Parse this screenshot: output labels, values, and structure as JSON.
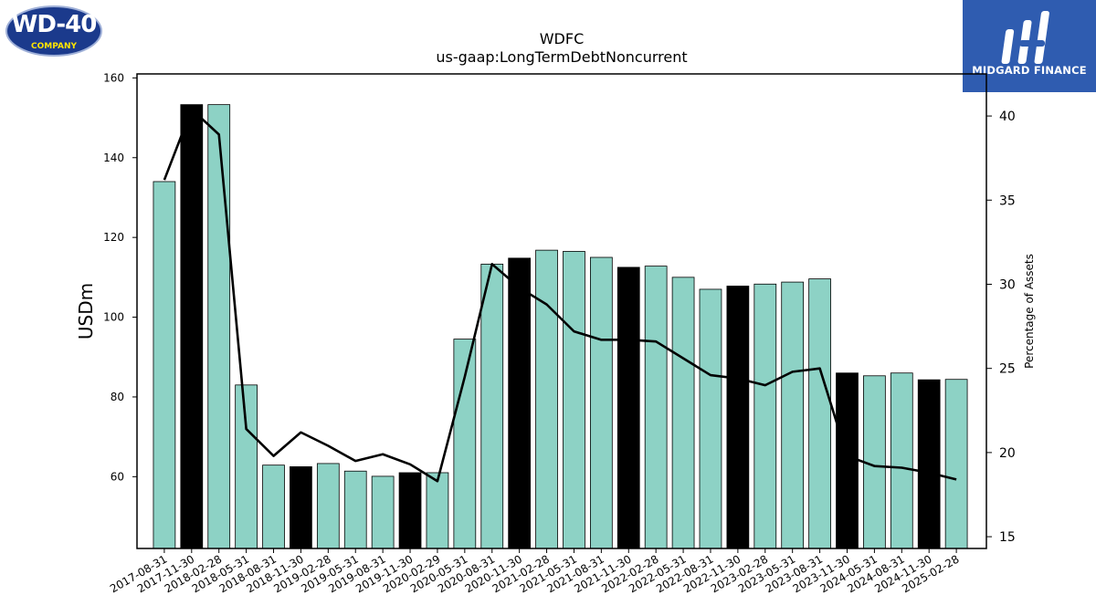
{
  "header": {
    "left_logo": {
      "text": "WD-40",
      "subtext": "COMPANY",
      "icon": "wd40-logo"
    },
    "right_logo": {
      "text": "MIDGARD FINANCE",
      "icon": "midgard-logo"
    }
  },
  "chart_data": {
    "type": "bar",
    "title": "WDFC",
    "subtitle": "us-gaap:LongTermDebtNoncurrent",
    "ylabel": "USDm",
    "y2label": "Percentage of Assets",
    "ylim": [
      42,
      161
    ],
    "y2lim": [
      14.3,
      42.5
    ],
    "yticks": [
      60,
      80,
      100,
      120,
      140,
      160
    ],
    "y2ticks": [
      15,
      20,
      25,
      30,
      35,
      40
    ],
    "categories": [
      "2017-08-31",
      "2017-11-30",
      "2018-02-28",
      "2018-05-31",
      "2018-08-31",
      "2018-11-30",
      "2019-02-28",
      "2019-05-31",
      "2019-08-31",
      "2019-11-30",
      "2020-02-29",
      "2020-05-31",
      "2020-08-31",
      "2020-11-30",
      "2021-02-28",
      "2021-05-31",
      "2021-08-31",
      "2021-11-30",
      "2022-02-28",
      "2022-05-31",
      "2022-08-31",
      "2022-11-30",
      "2023-02-28",
      "2023-05-31",
      "2023-08-31",
      "2023-11-30",
      "2024-05-31",
      "2024-08-31",
      "2024-11-30",
      "2025-02-28"
    ],
    "series": [
      {
        "kind": "bar",
        "values": [
          134.0,
          153.3,
          153.3,
          83.0,
          62.9,
          62.5,
          63.3,
          61.4,
          60.1,
          61.0,
          61.0,
          94.5,
          113.3,
          114.8,
          116.8,
          116.5,
          115.0,
          112.5,
          112.8,
          110.0,
          107.0,
          107.8,
          108.3,
          108.8,
          109.6,
          86.0,
          85.3,
          86.0,
          84.3,
          84.4
        ],
        "highlight": [
          false,
          true,
          false,
          false,
          false,
          true,
          false,
          false,
          false,
          true,
          false,
          false,
          false,
          true,
          false,
          false,
          false,
          true,
          false,
          false,
          false,
          true,
          false,
          false,
          false,
          true,
          false,
          false,
          true,
          false
        ]
      },
      {
        "kind": "line",
        "axis": "right",
        "values": [
          36.2,
          40.4,
          38.9,
          21.4,
          19.8,
          21.2,
          20.4,
          19.5,
          19.9,
          19.3,
          18.3,
          24.5,
          31.2,
          29.8,
          28.8,
          27.2,
          26.7,
          26.7,
          26.6,
          25.6,
          24.6,
          24.4,
          24.0,
          24.8,
          25.0,
          19.8,
          19.2,
          19.1,
          18.8,
          18.4
        ]
      }
    ],
    "colors": {
      "bar": "#8dd2c5",
      "bar_highlight": "#000000",
      "line": "#000000"
    }
  }
}
